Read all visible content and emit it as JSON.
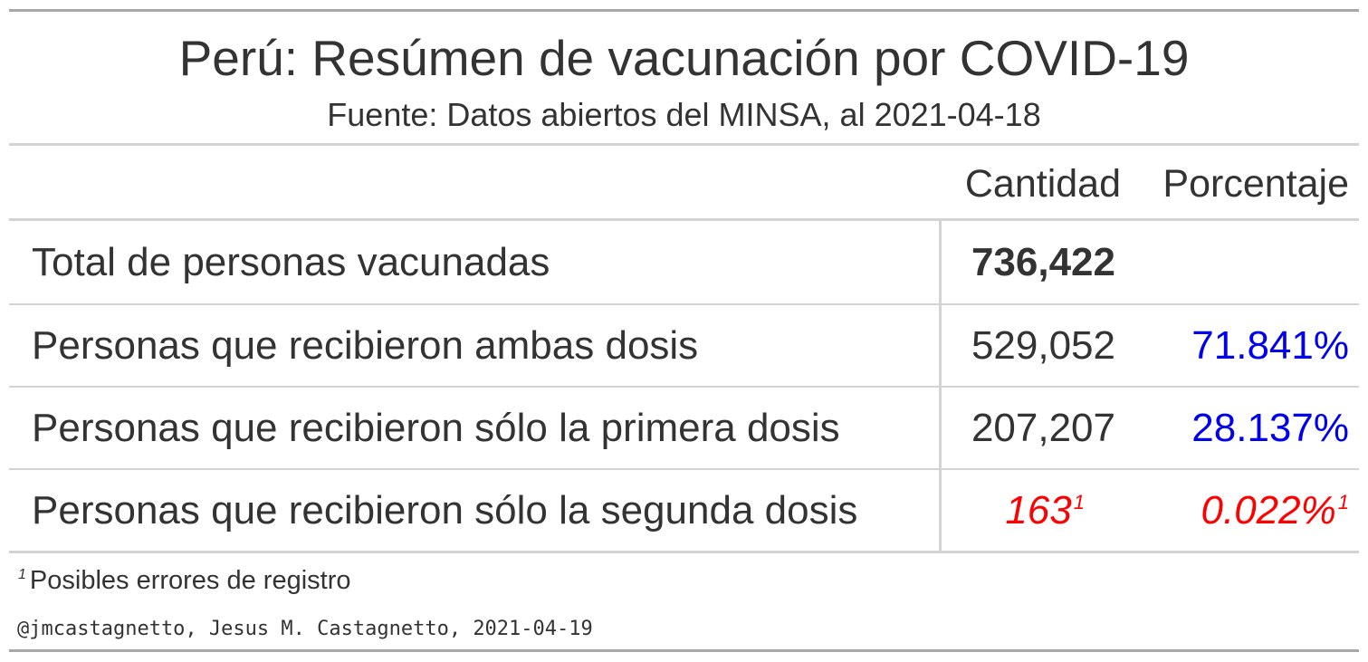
{
  "chart_data": {
    "type": "table",
    "title": "Perú: Resúmen de vacunación por COVID-19",
    "subtitle": "Fuente: Datos abiertos del MINSA, al 2021-04-18",
    "columns": [
      "Cantidad",
      "Porcentaje"
    ],
    "rows": [
      {
        "label": "Total de personas vacunadas",
        "cantidad": "736,422",
        "porcentaje": "",
        "footnote_mark": "",
        "color": "#333333",
        "bold": true
      },
      {
        "label": "Personas que recibieron ambas dosis",
        "cantidad": "529,052",
        "porcentaje": "71.841%",
        "footnote_mark": "",
        "color": "#0000ee",
        "bold": false
      },
      {
        "label": "Personas que recibieron sólo la primera dosis",
        "cantidad": "207,207",
        "porcentaje": "28.137%",
        "footnote_mark": "",
        "color": "#0000ee",
        "bold": false
      },
      {
        "label": "Personas que recibieron sólo la segunda dosis",
        "cantidad": "163",
        "porcentaje": "0.022%",
        "footnote_mark": "1",
        "color": "#ff0000",
        "bold": false
      }
    ],
    "footnote": {
      "mark": "1",
      "text": "Posibles errores de registro"
    },
    "source_note": "@jmcastagnetto, Jesus M. Castagnetto, 2021-04-19"
  }
}
